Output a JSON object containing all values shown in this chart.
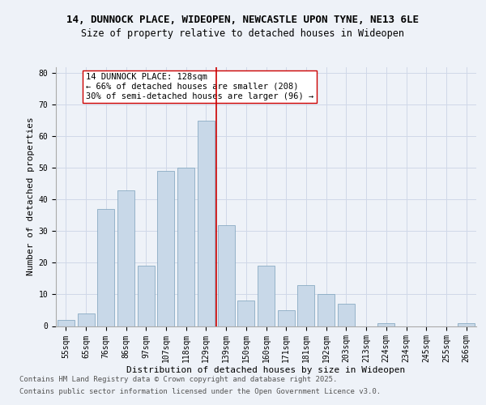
{
  "title_line1": "14, DUNNOCK PLACE, WIDEOPEN, NEWCASTLE UPON TYNE, NE13 6LE",
  "title_line2": "Size of property relative to detached houses in Wideopen",
  "xlabel": "Distribution of detached houses by size in Wideopen",
  "ylabel": "Number of detached properties",
  "categories": [
    "55sqm",
    "65sqm",
    "76sqm",
    "86sqm",
    "97sqm",
    "107sqm",
    "118sqm",
    "129sqm",
    "139sqm",
    "150sqm",
    "160sqm",
    "171sqm",
    "181sqm",
    "192sqm",
    "203sqm",
    "213sqm",
    "224sqm",
    "234sqm",
    "245sqm",
    "255sqm",
    "266sqm"
  ],
  "values": [
    2,
    4,
    37,
    43,
    19,
    49,
    50,
    65,
    32,
    8,
    19,
    5,
    13,
    10,
    7,
    0,
    1,
    0,
    0,
    0,
    1
  ],
  "bar_color": "#c8d8e8",
  "bar_edge_color": "#7aa0bb",
  "grid_color": "#d0d8e8",
  "background_color": "#eef2f8",
  "vline_x": 7.5,
  "vline_color": "#cc0000",
  "annotation_text": "14 DUNNOCK PLACE: 128sqm\n← 66% of detached houses are smaller (208)\n30% of semi-detached houses are larger (96) →",
  "annotation_box_color": "#ffffff",
  "annotation_box_edge": "#cc0000",
  "ylim": [
    0,
    82
  ],
  "yticks": [
    0,
    10,
    20,
    30,
    40,
    50,
    60,
    70,
    80
  ],
  "footer_line1": "Contains HM Land Registry data © Crown copyright and database right 2025.",
  "footer_line2": "Contains public sector information licensed under the Open Government Licence v3.0.",
  "title_fontsize": 9,
  "subtitle_fontsize": 8.5,
  "axis_label_fontsize": 8,
  "tick_fontsize": 7,
  "annotation_fontsize": 7.5,
  "footer_fontsize": 6.5
}
